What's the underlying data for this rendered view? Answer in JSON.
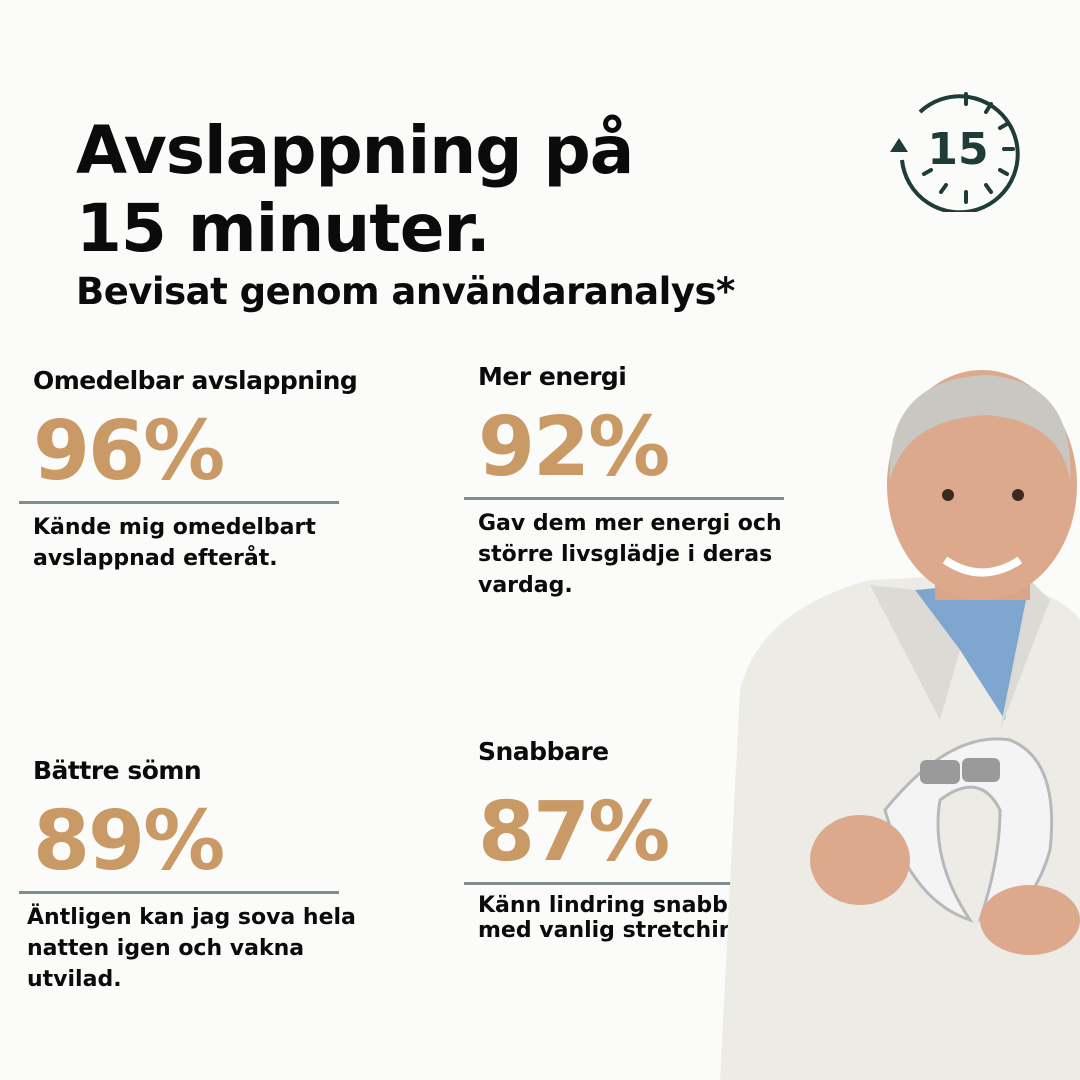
{
  "header": {
    "title_line1": "Avslappning på",
    "title_line2": "15 minuter.",
    "subtitle": "Bevisat genom användaranalys*"
  },
  "badge": {
    "icon": "timer-15-icon",
    "number": "15",
    "color": "#1e3d38"
  },
  "accent_color": "#c99a66",
  "stats": [
    {
      "label": "Omedelbar avslappning",
      "value": "96%",
      "desc": "Kände mig omedelbart avslappnad efteråt."
    },
    {
      "label": "Mer energi",
      "value": "92%",
      "desc": "Gav dem mer energi och större livsglädje i deras vardag."
    },
    {
      "label": "Bättre sömn",
      "value": "89%",
      "desc": "Äntligen kan jag sova hela natten igen och vakna utvilad."
    },
    {
      "label": "Snabbare",
      "value": "87%",
      "desc": "Känn lindring snabbare än med vanlig stretching."
    }
  ]
}
